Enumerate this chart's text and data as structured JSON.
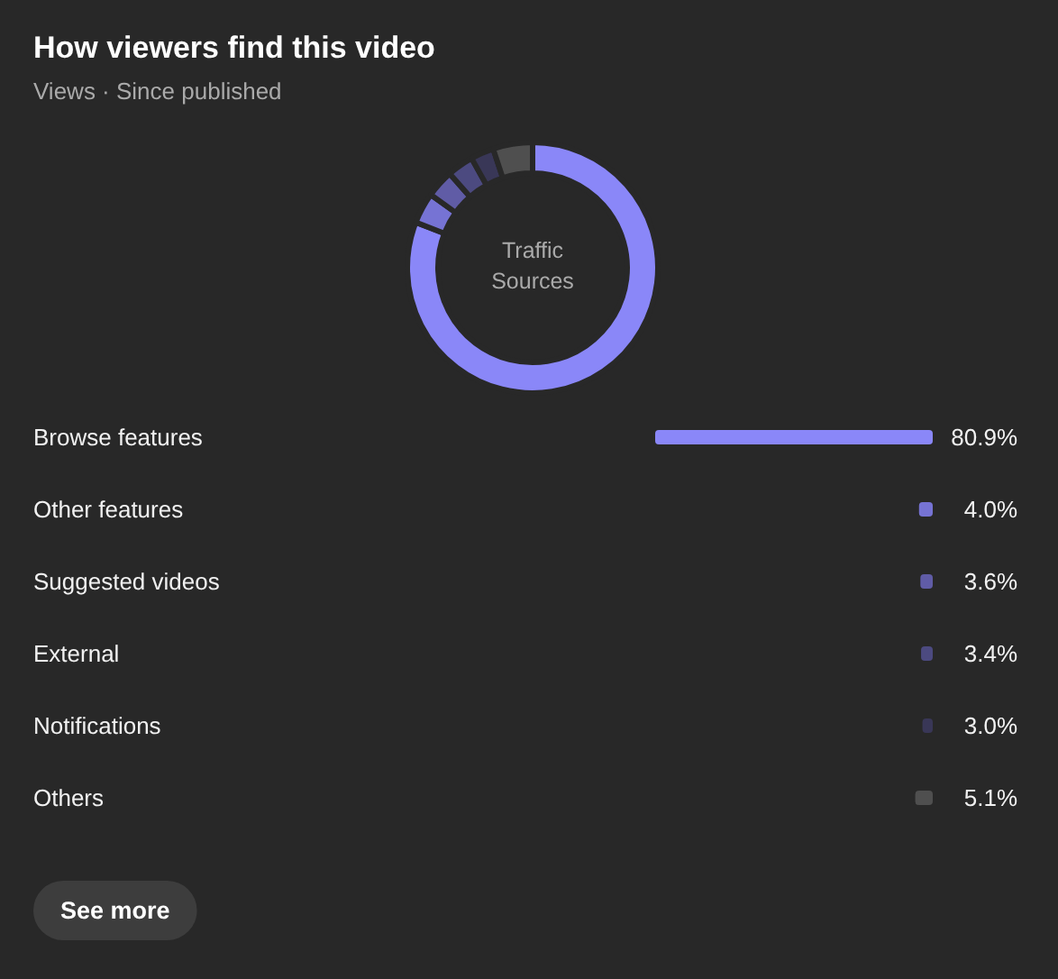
{
  "chart_data": [
    {
      "type": "donut",
      "title": "How viewers find this video",
      "subtitle": "Views · Since published",
      "categories": [
        null,
        null,
        null,
        null,
        null,
        null
      ],
      "values": [
        80.9,
        4.0,
        3.6,
        3.4,
        3.0,
        5.1
      ],
      "colors": [
        "#8a87f8",
        "#7673d4",
        "#605ca6",
        "#4c4a80",
        "#393757",
        "#4f4f4f"
      ],
      "annotations": [
        "Traffic Sources"
      ]
    },
    {
      "type": "bar",
      "orientation": "horizontal",
      "categories": [
        "Browse features",
        "Other features",
        "Suggested videos",
        "External",
        "Notifications",
        "Others"
      ],
      "values": [
        80.9,
        4.0,
        3.6,
        3.4,
        3.0,
        5.1
      ],
      "colors": [
        "#8a87f8",
        "#7673d4",
        "#605ca6",
        "#4c4a80",
        "#393757",
        "#4f4f4f"
      ],
      "value_labels": [
        "80.9%",
        "4.0%",
        "3.6%",
        "3.4%",
        "3.0%",
        "5.1%"
      ],
      "annotations": [
        "See more"
      ]
    }
  ]
}
